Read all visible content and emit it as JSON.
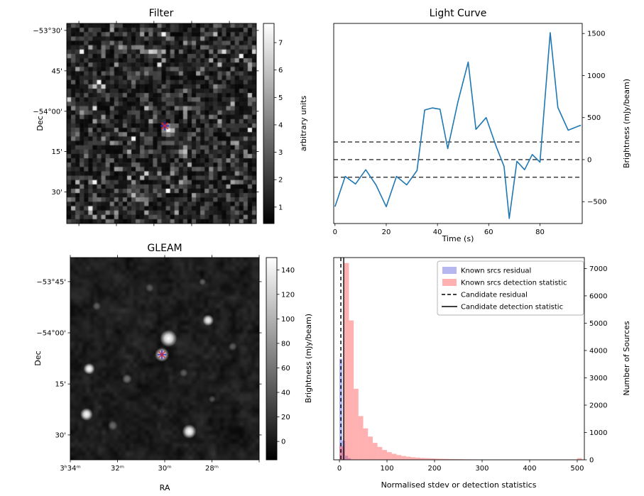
{
  "chart_data": [
    {
      "id": "filter",
      "type": "heatmap",
      "title": "Filter",
      "ylabel": "Dec",
      "ytick_labels": [
        "−53°30'",
        "45'",
        "−54°00'",
        "15'",
        "30'"
      ],
      "colorbar": {
        "label": "arbitrary units",
        "ticks": [
          1,
          2,
          3,
          4,
          5,
          6,
          7
        ],
        "vmin": 0.4,
        "vmax": 7.7
      },
      "noise": {
        "seed": 20231,
        "cols": 44,
        "rows": 46,
        "description": "blocky grayscale noise, mostly 1-3 arbitrary units, bright source pixel at marker"
      },
      "marker": {
        "fx": 0.517,
        "fy": 0.512,
        "x_color": "#d62728",
        "plus_color": "#2323cc"
      }
    },
    {
      "id": "light_curve",
      "type": "line",
      "title": "Light Curve",
      "xlabel": "Time (s)",
      "ylabel": "Brightness (mJy/beam)",
      "x": [
        0,
        4,
        8,
        12,
        16,
        20,
        24,
        28,
        32,
        35,
        38,
        41,
        44,
        48,
        52,
        55,
        59,
        63,
        66,
        68,
        71,
        74,
        77,
        80,
        84,
        87,
        91,
        96
      ],
      "y": [
        -560,
        -200,
        -290,
        -120,
        -300,
        -560,
        -200,
        -300,
        -130,
        590,
        615,
        600,
        130,
        690,
        1160,
        360,
        500,
        150,
        -80,
        -700,
        -20,
        -120,
        60,
        -30,
        1510,
        620,
        350,
        410
      ],
      "dashed_hlines": [
        210,
        0,
        -210
      ],
      "xlim": [
        -0.5,
        96.5
      ],
      "ylim": [
        -760,
        1620
      ],
      "xticks": [
        0,
        20,
        40,
        60,
        80
      ],
      "yticks": [
        -500,
        0,
        500,
        1000,
        1500
      ],
      "line_color": "#1f77b4",
      "grid": "off"
    },
    {
      "id": "gleam",
      "type": "heatmap",
      "title": "GLEAM",
      "xlabel": "RA",
      "ylabel": "Dec",
      "xtick_labels": [
        "3ʰ34ᵐ",
        "32ᵐ",
        "30ᵐ",
        "28ᵐ"
      ],
      "ytick_labels": [
        "−53°45'",
        "−54°00'",
        "15'",
        "30'"
      ],
      "colorbar": {
        "label": "Brightness (mJy/beam)",
        "ticks": [
          0,
          20,
          40,
          60,
          80,
          100,
          120,
          140
        ],
        "vmin": -15,
        "vmax": 150
      },
      "noise": {
        "seed": 777,
        "description": "smooth dark sky background with point sources"
      },
      "sources": [
        [
          0.485,
          0.48,
          10,
          1.0
        ],
        [
          0.52,
          0.4,
          12,
          1.0
        ],
        [
          0.73,
          0.31,
          8,
          0.95
        ],
        [
          0.1,
          0.55,
          8,
          1.0
        ],
        [
          0.086,
          0.775,
          9,
          1.0
        ],
        [
          0.63,
          0.86,
          10,
          1.0
        ],
        [
          0.3,
          0.6,
          7,
          0.4
        ],
        [
          0.225,
          0.83,
          7,
          0.35
        ],
        [
          0.14,
          0.24,
          6,
          0.3
        ],
        [
          0.6,
          0.57,
          6,
          0.3
        ],
        [
          0.86,
          0.44,
          6,
          0.3
        ],
        [
          0.42,
          0.15,
          6,
          0.25
        ],
        [
          0.7,
          0.12,
          5,
          0.3
        ],
        [
          0.75,
          0.7,
          5,
          0.25
        ]
      ],
      "marker": {
        "fx": 0.485,
        "fy": 0.48,
        "x_color": "#d62728",
        "plus_color": "#2323cc"
      }
    },
    {
      "id": "histogram",
      "type": "bar",
      "title": "",
      "xlabel": "Normalised stdev or detection statistics",
      "ylabel": "Number of Sources",
      "xlim": [
        -12,
        515
      ],
      "ylim": [
        0,
        7400
      ],
      "xticks": [
        0,
        100,
        200,
        300,
        400,
        500
      ],
      "yticks": [
        0,
        1000,
        2000,
        3000,
        4000,
        5000,
        6000,
        7000
      ],
      "series": [
        {
          "name": "Known srcs residual",
          "color": "rgba(110,110,225,0.5)",
          "bin_start": 0,
          "bin_width": 6,
          "values": [
            3700,
            700,
            150,
            60
          ]
        },
        {
          "name": "Known srcs detection statistic",
          "color": "rgba(255,80,80,0.45)",
          "bin_start": 0,
          "bin_width": 10,
          "values": [
            500,
            7200,
            5100,
            2600,
            1600,
            1150,
            850,
            620,
            470,
            360,
            280,
            220,
            175,
            140,
            115,
            95,
            80,
            68,
            58,
            50,
            43,
            37,
            32,
            28,
            25,
            22,
            19,
            17,
            15,
            13,
            12,
            11,
            10,
            9,
            8,
            8,
            7,
            7,
            6,
            6,
            5,
            5,
            5,
            4,
            4,
            4,
            4,
            3,
            3,
            3,
            60
          ]
        }
      ],
      "vlines": [
        {
          "label": "Candidate residual",
          "style": "dashed",
          "x": 3
        },
        {
          "label": "Candidate detection statistic",
          "style": "solid",
          "x": 9
        }
      ],
      "legend": [
        {
          "label": "Known srcs residual",
          "type": "patch",
          "color": "rgba(110,110,225,0.5)"
        },
        {
          "label": "Known srcs detection statistic",
          "type": "patch",
          "color": "rgba(255,80,80,0.45)"
        },
        {
          "label": "Candidate residual",
          "type": "dashed-line"
        },
        {
          "label": "Candidate detection statistic",
          "type": "solid-line"
        }
      ],
      "legend_position": "upper right"
    }
  ]
}
